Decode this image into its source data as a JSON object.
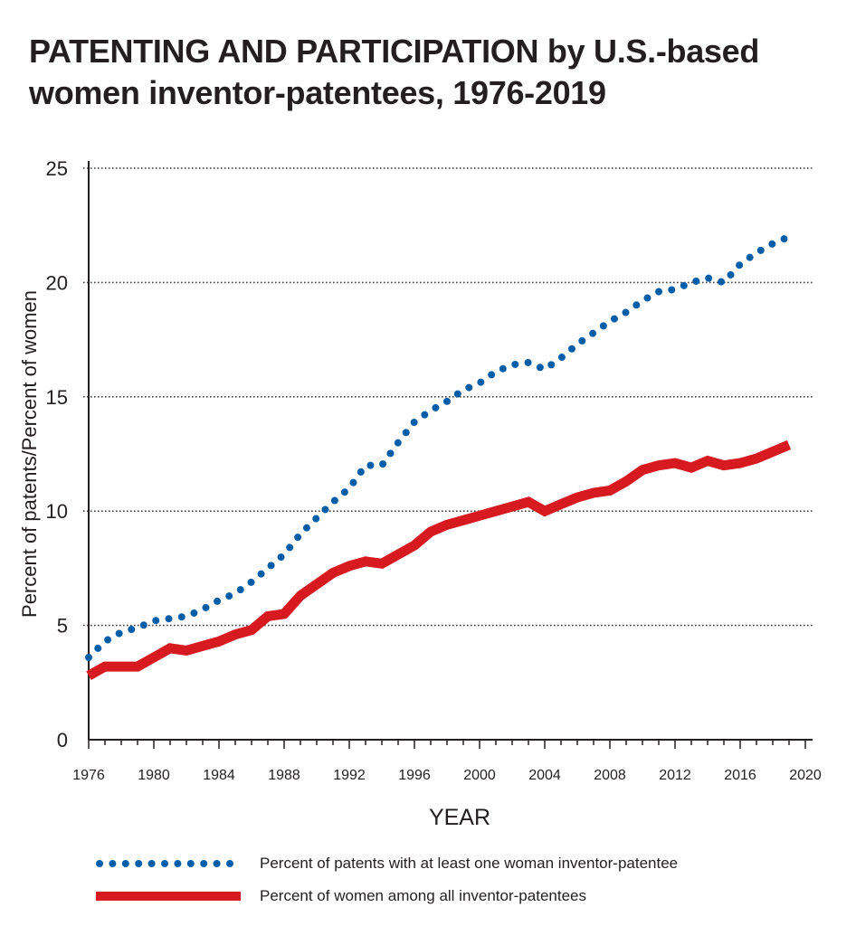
{
  "chart_data": {
    "type": "line",
    "title_line1": "PATENTING AND PARTICIPATION by U.S.-based",
    "title_line2": "women inventor-patentees, 1976-2019",
    "xlabel": "YEAR",
    "ylabel": "Percent of patents/Percent of women",
    "xlim": [
      1976,
      2020
    ],
    "ylim": [
      0,
      25
    ],
    "x_ticks": [
      1976,
      1980,
      1984,
      1988,
      1992,
      1996,
      2000,
      2004,
      2008,
      2012,
      2016,
      2020
    ],
    "y_ticks": [
      0,
      5,
      10,
      15,
      20,
      25
    ],
    "grid": "horizontal dotted",
    "legend_position": "bottom",
    "x": [
      1976,
      1977,
      1978,
      1979,
      1980,
      1981,
      1982,
      1983,
      1984,
      1985,
      1986,
      1987,
      1988,
      1989,
      1990,
      1991,
      1992,
      1993,
      1994,
      1995,
      1996,
      1997,
      1998,
      1999,
      2000,
      2001,
      2002,
      2003,
      2004,
      2005,
      2006,
      2007,
      2008,
      2009,
      2010,
      2011,
      2012,
      2013,
      2014,
      2015,
      2016,
      2017,
      2018,
      2019
    ],
    "series": [
      {
        "name": "Percent of patents with at least one woman inventor-patentee",
        "style": "dotted",
        "color": "#005da8",
        "values": [
          3.6,
          4.3,
          4.7,
          4.9,
          5.2,
          5.3,
          5.4,
          5.7,
          6.1,
          6.4,
          6.9,
          7.5,
          8.1,
          9.0,
          9.7,
          10.4,
          11.0,
          12.0,
          12.0,
          13.0,
          13.9,
          14.4,
          14.8,
          15.3,
          15.6,
          16.1,
          16.4,
          16.5,
          16.2,
          16.7,
          17.3,
          17.8,
          18.3,
          18.7,
          19.2,
          19.6,
          19.7,
          20.0,
          20.2,
          20.0,
          20.8,
          21.3,
          21.7,
          22.0
        ]
      },
      {
        "name": "Percent of women among all inventor-patentees",
        "style": "solid",
        "color": "#d71920",
        "values": [
          2.8,
          3.2,
          3.2,
          3.2,
          3.6,
          4.0,
          3.9,
          4.1,
          4.3,
          4.6,
          4.8,
          5.4,
          5.5,
          6.3,
          6.8,
          7.3,
          7.6,
          7.8,
          7.7,
          8.1,
          8.5,
          9.1,
          9.4,
          9.6,
          9.8,
          10.0,
          10.2,
          10.4,
          10.0,
          10.3,
          10.6,
          10.8,
          10.9,
          11.3,
          11.8,
          12.0,
          12.1,
          11.9,
          12.2,
          12.0,
          12.1,
          12.3,
          12.6,
          12.9
        ]
      }
    ]
  }
}
